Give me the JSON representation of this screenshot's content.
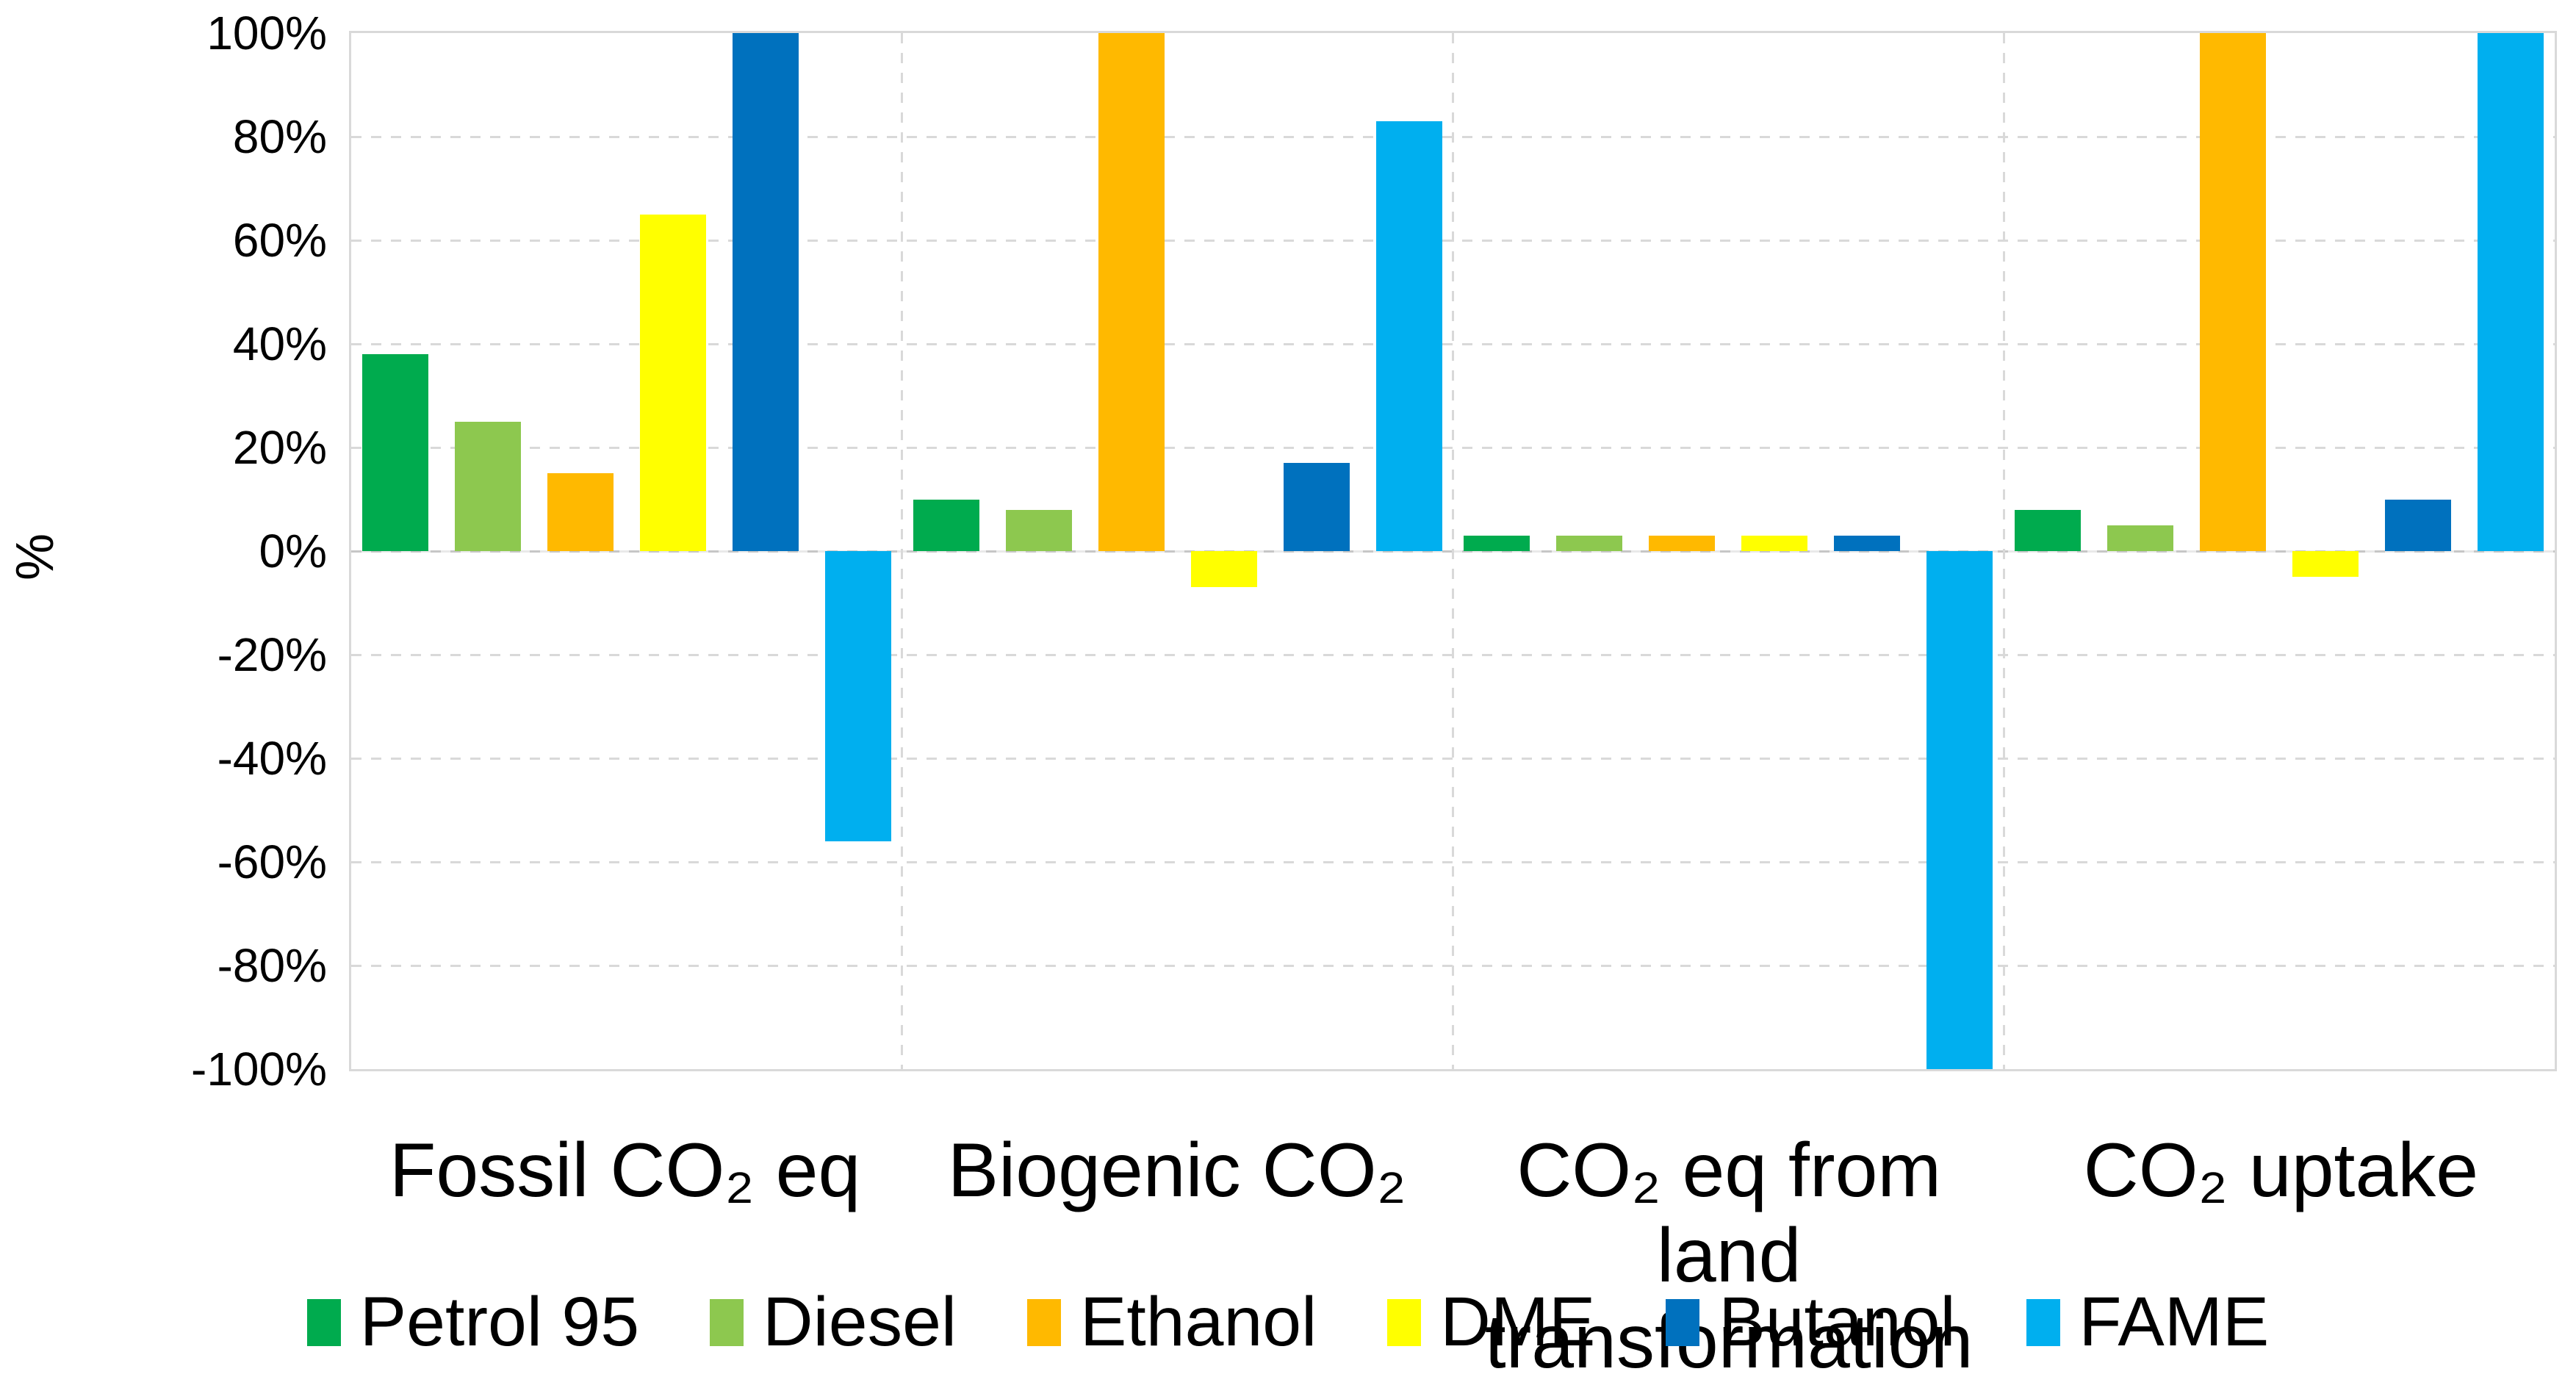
{
  "chart_data": {
    "type": "bar",
    "title": "",
    "ylabel": "%",
    "xlabel": "",
    "ylim": [
      -100,
      100
    ],
    "ytick_step": 20,
    "grid": true,
    "legend_position": "bottom",
    "yticks": [
      "100%",
      "80%",
      "60%",
      "40%",
      "20%",
      "0%",
      "-20%",
      "-40%",
      "-60%",
      "-80%",
      "-100%"
    ],
    "categories": [
      "Fossil CO₂ eq",
      "Biogenic CO₂",
      "CO₂ eq from land transformation",
      "CO₂ uptake"
    ],
    "series": [
      {
        "name": "Petrol 95",
        "color": "#00AB4E",
        "values": [
          38,
          10,
          3,
          8
        ]
      },
      {
        "name": "Diesel",
        "color": "#8DC84F",
        "values": [
          25,
          8,
          3,
          5
        ]
      },
      {
        "name": "Ethanol",
        "color": "#FFB900",
        "values": [
          15,
          100,
          3,
          100
        ]
      },
      {
        "name": "DME",
        "color": "#FFFF00",
        "values": [
          65,
          -7,
          3,
          -5
        ]
      },
      {
        "name": "Butanol",
        "color": "#0071BE",
        "values": [
          100,
          17,
          3,
          10
        ]
      },
      {
        "name": "FAME",
        "color": "#00AFEF",
        "values": [
          -56,
          83,
          -100,
          100
        ]
      }
    ]
  },
  "style_colors": {
    "gridline": "#D9D9D9",
    "zero_line": "#C6C6C6",
    "plot_border": "#D9D9D9",
    "text": "#000000",
    "background": "#FFFFFF"
  }
}
